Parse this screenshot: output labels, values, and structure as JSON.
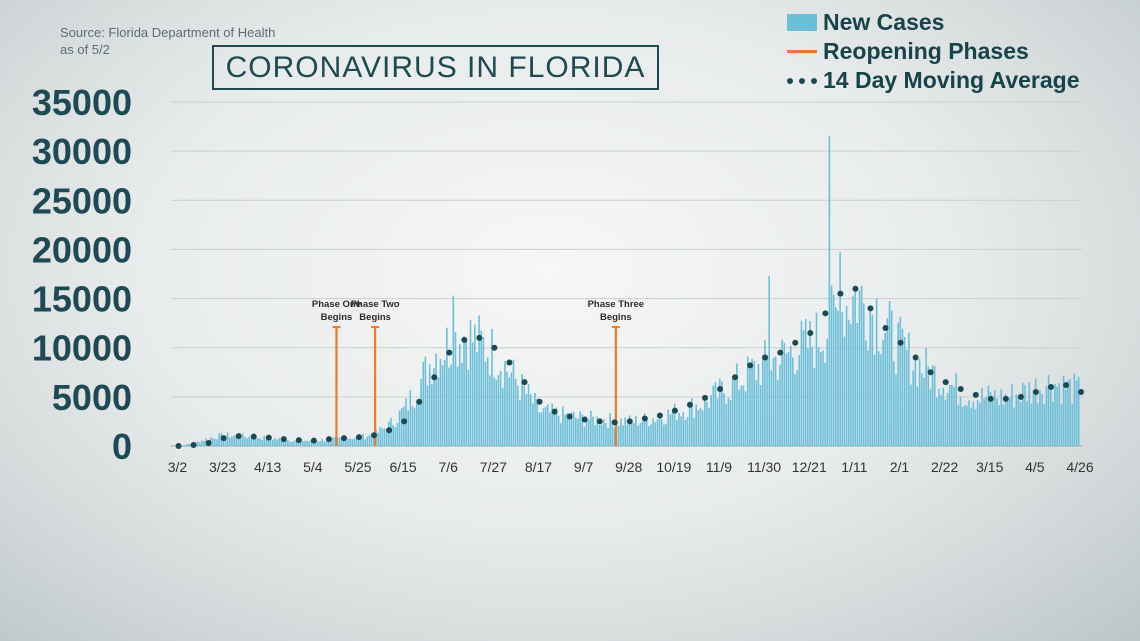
{
  "header": {
    "source_line1": "Source: Florida Department of Health",
    "source_line2": "as of 5/2",
    "title": "CORONAVIRUS IN FLORIDA"
  },
  "legend": {
    "bars": "New Cases",
    "phases": "Reopening Phases",
    "average": "14 Day Moving Average"
  },
  "colors": {
    "bars": "#6cbfd9",
    "phases": "#ec7a2e",
    "average": "#1a4a52",
    "axis_text": "#1e4a55"
  },
  "chart_data": {
    "type": "bar",
    "title": "CORONAVIRUS IN FLORIDA",
    "xlabel": "",
    "ylabel": "",
    "ylim": [
      0,
      35000
    ],
    "yticks": [
      0,
      5000,
      10000,
      15000,
      20000,
      25000,
      30000,
      35000
    ],
    "grid": true,
    "legend_position": "top-right",
    "xticks": [
      {
        "label": "3/2",
        "week": 0
      },
      {
        "label": "3/23",
        "week": 3
      },
      {
        "label": "4/13",
        "week": 6
      },
      {
        "label": "5/4",
        "week": 9
      },
      {
        "label": "5/25",
        "week": 12
      },
      {
        "label": "6/15",
        "week": 15
      },
      {
        "label": "7/6",
        "week": 18
      },
      {
        "label": "7/27",
        "week": 21
      },
      {
        "label": "8/17",
        "week": 24
      },
      {
        "label": "9/7",
        "week": 27
      },
      {
        "label": "9/28",
        "week": 30
      },
      {
        "label": "10/19",
        "week": 33
      },
      {
        "label": "11/9",
        "week": 36
      },
      {
        "label": "11/30",
        "week": 39
      },
      {
        "label": "12/21",
        "week": 42
      },
      {
        "label": "1/11",
        "week": 45
      },
      {
        "label": "2/1",
        "week": 48
      },
      {
        "label": "2/22",
        "week": 51
      },
      {
        "label": "3/15",
        "week": 54
      },
      {
        "label": "4/5",
        "week": 57
      },
      {
        "label": "4/26",
        "week": 60
      }
    ],
    "new_cases_weekly_typical": [
      0,
      300,
      800,
      1100,
      1000,
      900,
      800,
      650,
      550,
      550,
      650,
      800,
      900,
      1200,
      2200,
      3800,
      6500,
      9500,
      10500,
      11500,
      10500,
      9500,
      7500,
      5500,
      3500,
      3300,
      3000,
      2800,
      2700,
      2600,
      2500,
      2700,
      3000,
      3500,
      4000,
      4500,
      5500,
      6500,
      7500,
      8500,
      9000,
      10000,
      10500,
      12000,
      14000,
      15500,
      14000,
      12000,
      10000,
      8500,
      7500,
      6500,
      5500,
      5000,
      5000,
      5000,
      5500,
      6000,
      6500,
      6000,
      5500
    ],
    "new_cases_peaks": [
      {
        "date": "7/11",
        "value": 15300
      },
      {
        "date": "12/5",
        "value": 17300
      },
      {
        "date": "1/2",
        "value": 31500
      },
      {
        "date": "1/7",
        "value": 19700
      },
      {
        "date": "1/24",
        "value": 15000
      }
    ],
    "moving_average_weekly": [
      0,
      100,
      300,
      800,
      1000,
      950,
      850,
      700,
      600,
      550,
      700,
      800,
      900,
      1100,
      1600,
      2500,
      4500,
      7000,
      9500,
      10800,
      11000,
      10000,
      8500,
      6500,
      4500,
      3500,
      3000,
      2700,
      2500,
      2400,
      2500,
      2800,
      3100,
      3600,
      4200,
      4900,
      5800,
      7000,
      8200,
      9000,
      9500,
      10500,
      11500,
      13500,
      15500,
      16000,
      14000,
      12000,
      10500,
      9000,
      7500,
      6500,
      5800,
      5200,
      4800,
      4800,
      5000,
      5500,
      6000,
      6200,
      5500
    ],
    "reopening_phases": [
      {
        "label_line1": "Phase One",
        "label_line2": "Begins",
        "date": "5/18",
        "value": 12100
      },
      {
        "label_line1": "Phase Two",
        "label_line2": "Begins",
        "date": "6/5",
        "value": 12100
      },
      {
        "label_line1": "Phase Three",
        "label_line2": "Begins",
        "date": "9/25",
        "value": 12100
      }
    ]
  }
}
